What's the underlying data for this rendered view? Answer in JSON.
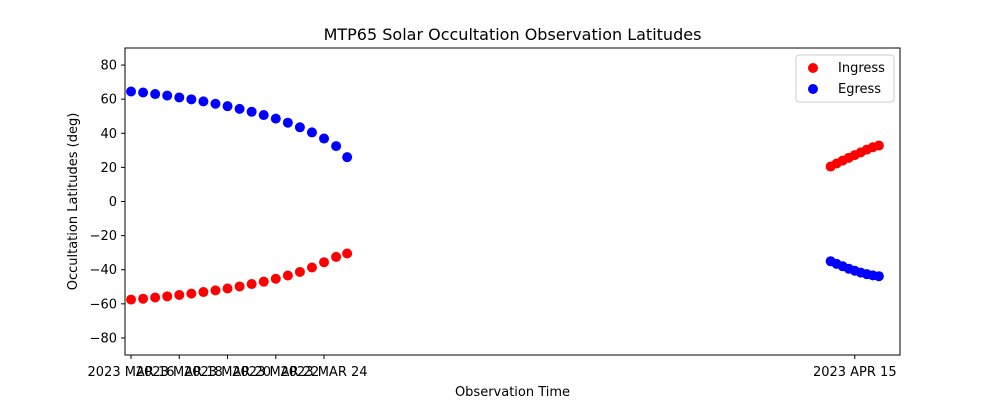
{
  "chart_data": {
    "type": "scatter",
    "title": "MTP65 Solar Occultation Observation Latitudes",
    "xlabel": "Observation Time",
    "ylabel": "Occultation Latitudes (deg)",
    "x_axis": {
      "kind": "date",
      "range": [
        "2023-03-15T18:00",
        "2023-04-16T21:00"
      ],
      "ticks": [
        {
          "value": "2023-03-16",
          "label": "2023 MAR 16"
        },
        {
          "value": "2023-03-18",
          "label": "2023 MAR 18"
        },
        {
          "value": "2023-03-20",
          "label": "2023 MAR 20"
        },
        {
          "value": "2023-03-22",
          "label": "2023 MAR 22"
        },
        {
          "value": "2023-03-24",
          "label": "2023 MAR 24"
        },
        {
          "value": "2023-04-15",
          "label": "2023 APR 15"
        }
      ]
    },
    "y_axis": {
      "range": [
        -90,
        90
      ],
      "ticks": [
        -80,
        -60,
        -40,
        -20,
        0,
        20,
        40,
        60,
        80
      ]
    },
    "grid": false,
    "legend": {
      "placement": "top-right"
    },
    "series": [
      {
        "name": "Ingress",
        "color": "#ff0000",
        "points": [
          [
            "2023-03-16T00:00",
            -57.5
          ],
          [
            "2023-03-16T12:00",
            -57.0
          ],
          [
            "2023-03-17T00:00",
            -56.3
          ],
          [
            "2023-03-17T12:00",
            -55.6
          ],
          [
            "2023-03-18T00:00",
            -54.8
          ],
          [
            "2023-03-18T12:00",
            -54.0
          ],
          [
            "2023-03-19T00:00",
            -53.1
          ],
          [
            "2023-03-19T12:00",
            -52.1
          ],
          [
            "2023-03-20T00:00",
            -51.0
          ],
          [
            "2023-03-20T12:00",
            -49.8
          ],
          [
            "2023-03-21T00:00",
            -48.4
          ],
          [
            "2023-03-21T12:00",
            -47.0
          ],
          [
            "2023-03-22T00:00",
            -45.3
          ],
          [
            "2023-03-22T12:00",
            -43.4
          ],
          [
            "2023-03-23T00:00",
            -41.3
          ],
          [
            "2023-03-23T12:00",
            -38.7
          ],
          [
            "2023-03-24T00:00",
            -35.6
          ],
          [
            "2023-03-24T12:00",
            -32.5
          ],
          [
            "2023-03-24T23:00",
            -30.5
          ],
          [
            "2023-04-14T00:00",
            20.5
          ],
          [
            "2023-04-14T06:00",
            22.3
          ],
          [
            "2023-04-14T12:00",
            24.0
          ],
          [
            "2023-04-14T18:00",
            25.6
          ],
          [
            "2023-04-15T00:00",
            27.2
          ],
          [
            "2023-04-15T06:00",
            28.8
          ],
          [
            "2023-04-15T12:00",
            30.4
          ],
          [
            "2023-04-15T18:00",
            31.8
          ],
          [
            "2023-04-16T00:00",
            32.8
          ]
        ]
      },
      {
        "name": "Egress",
        "color": "#0000ff",
        "points": [
          [
            "2023-03-16T00:00",
            64.5
          ],
          [
            "2023-03-16T12:00",
            63.9
          ],
          [
            "2023-03-17T00:00",
            63.0
          ],
          [
            "2023-03-17T12:00",
            62.1
          ],
          [
            "2023-03-18T00:00",
            61.0
          ],
          [
            "2023-03-18T12:00",
            59.9
          ],
          [
            "2023-03-19T00:00",
            58.7
          ],
          [
            "2023-03-19T12:00",
            57.3
          ],
          [
            "2023-03-20T00:00",
            55.9
          ],
          [
            "2023-03-20T12:00",
            54.3
          ],
          [
            "2023-03-21T00:00",
            52.6
          ],
          [
            "2023-03-21T12:00",
            50.7
          ],
          [
            "2023-03-22T00:00",
            48.6
          ],
          [
            "2023-03-22T12:00",
            46.2
          ],
          [
            "2023-03-23T00:00",
            43.5
          ],
          [
            "2023-03-23T12:00",
            40.5
          ],
          [
            "2023-03-24T00:00",
            36.9
          ],
          [
            "2023-03-24T12:00",
            32.5
          ],
          [
            "2023-03-24T23:00",
            26.0
          ],
          [
            "2023-04-14T00:00",
            -35.0
          ],
          [
            "2023-04-14T06:00",
            -36.6
          ],
          [
            "2023-04-14T12:00",
            -38.0
          ],
          [
            "2023-04-14T18:00",
            -39.4
          ],
          [
            "2023-04-15T00:00",
            -40.6
          ],
          [
            "2023-04-15T06:00",
            -41.7
          ],
          [
            "2023-04-15T12:00",
            -42.6
          ],
          [
            "2023-04-15T18:00",
            -43.3
          ],
          [
            "2023-04-16T00:00",
            -43.8
          ]
        ]
      }
    ]
  }
}
